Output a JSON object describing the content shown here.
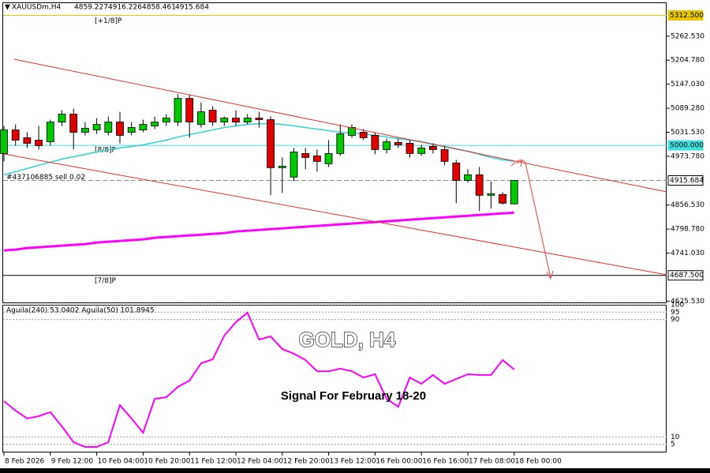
{
  "chart_data": [
    {
      "type": "candlestick",
      "title": "XAUUSDm,H4",
      "categories": [
        "8 Feb 2026",
        null,
        null,
        null,
        "9 Feb 12:00",
        null,
        null,
        null,
        "10 Feb 04:00",
        null,
        null,
        null,
        "10 Feb 20:00",
        null,
        null,
        null,
        "11 Feb 12:00",
        null,
        null,
        null,
        "12 Feb 04:00",
        null,
        null,
        null,
        "12 Feb 20:00",
        null,
        null,
        null,
        "13 Feb 12:00",
        null,
        null,
        null,
        "16 Feb 00:00",
        null,
        null,
        null,
        "16 Feb 16:00",
        null,
        null,
        null,
        "17 Feb 08:00",
        null,
        null,
        null,
        "18 Feb 00:00"
      ],
      "open": [
        4980.4,
        5037.2,
        5018.3,
        5012.6,
        5008.8,
        5056.1,
        5075.1,
        5031.5,
        5037.2,
        5031.5,
        5056.1,
        5031.5,
        5037.2,
        5046.7,
        5056.1,
        5056.1,
        5112.9,
        5050.4,
        5084.5,
        5056.1,
        5065.6,
        5056.1,
        5065.6,
        5061.8,
        4946.4,
        4923.7,
        4980.4,
        4974.7,
        4955.8,
        4980.4,
        5024.0,
        5031.5,
        5024.0,
        4989.9,
        5006.9,
        5005.0,
        4980.4,
        4997.5,
        4989.9,
        4957.7,
        4915.7,
        4929.3,
        4880.0,
        4881.9,
        4859.227
      ],
      "high": [
        5046.7,
        5050.4,
        5031.5,
        5046.7,
        5061.8,
        5084.5,
        5088.3,
        5056.1,
        5065.6,
        5069.4,
        5080.7,
        5056.1,
        5061.8,
        5069.4,
        5075.1,
        5122.4,
        5122.4,
        5103.5,
        5094.0,
        5069.4,
        5084.5,
        5075.1,
        5080.7,
        5069.4,
        4970.9,
        4993.6,
        4993.6,
        4989.9,
        5012.6,
        5050.4,
        5050.4,
        5039.1,
        5031.5,
        5016.4,
        5016.4,
        5012.6,
        5001.3,
        5005.0,
        4999.4,
        4965.2,
        4942.6,
        4948.3,
        4914.1,
        4887.6,
        4916.226
      ],
      "low": [
        4961.5,
        4999.4,
        4993.6,
        4989.9,
        4999.4,
        5046.7,
        4989.9,
        5024.0,
        5027.7,
        5024.0,
        5005.0,
        5024.0,
        5031.5,
        5039.1,
        5046.7,
        5046.7,
        5018.3,
        5042.9,
        5046.7,
        5046.7,
        5046.7,
        5050.4,
        5042.9,
        4880.0,
        4885.7,
        4914.1,
        4942.6,
        4936.9,
        4948.3,
        4974.7,
        5018.3,
        5012.6,
        4978.5,
        4980.4,
        4993.6,
        4970.9,
        4974.7,
        4980.4,
        4952.0,
        4861.1,
        4910.3,
        4842.2,
        4847.9,
        4857.3,
        4858.461
      ],
      "close": [
        5037.2,
        5012.6,
        5005.0,
        4999.4,
        5056.1,
        5075.1,
        5031.5,
        5041.0,
        5050.4,
        5056.1,
        5024.0,
        5042.9,
        5050.4,
        5056.1,
        5065.6,
        5112.9,
        5056.1,
        5080.7,
        5056.1,
        5065.6,
        5056.1,
        5065.6,
        5061.8,
        4946.4,
        4950.1,
        4984.2,
        4970.9,
        4961.5,
        4980.4,
        5027.7,
        5042.9,
        5018.3,
        4989.9,
        5008.8,
        5001.3,
        4980.4,
        4993.6,
        4989.9,
        4961.5,
        4915.7,
        4929.3,
        4880.0,
        4883.8,
        4861.1,
        4915.684
      ],
      "up_color": "#00c800",
      "down_color": "#e00000",
      "overlays": [
        {
          "color": "#40d0d0",
          "values": [
            4929.3,
            4936.9,
            4944.4,
            4952.0,
            4959.6,
            4967.1,
            4972.8,
            4978.5,
            4984.2,
            4989.9,
            4993.6,
            4997.5,
            5001.3,
            5006.9,
            5012.6,
            5020.1,
            5025.8,
            5031.5,
            5037.2,
            5042.9,
            5046.7,
            5050.4,
            5052.3,
            5052.3,
            5050.4,
            5046.7,
            5042.9,
            5039.1,
            5035.3,
            5031.5,
            5029.6,
            5027.7,
            5024.0,
            5020.1,
            5016.4,
            5012.6,
            5008.8,
            5003.1,
            4997.5,
            4991.7,
            4986.2,
            4978.5,
            4970.9,
            4965.2,
            4961.5
          ]
        },
        {
          "color": "#ff00ff",
          "values": [
            4747.5,
            4749.4,
            4753.2,
            4755.1,
            4757.0,
            4758.9,
            4760.8,
            4762.6,
            4766.4,
            4768.3,
            4770.2,
            4772.1,
            4774.0,
            4777.8,
            4779.7,
            4781.6,
            4783.5,
            4785.3,
            4787.2,
            4789.1,
            4792.9,
            4794.8,
            4796.7,
            4798.6,
            4800.5,
            4802.4,
            4804.3,
            4806.2,
            4808.1,
            4810.0,
            4811.9,
            4813.8,
            4815.6,
            4817.5,
            4819.4,
            4821.3,
            4823.2,
            4825.1,
            4827.0,
            4828.9,
            4830.8,
            4832.7,
            4834.6,
            4836.5,
            4838.4
          ]
        }
      ],
      "levels": [
        {
          "value": 5312.5,
          "label": "5312.500",
          "tag": "[+1/8]P",
          "color": "#e6c800"
        },
        {
          "value": 5000,
          "label": "5000.000",
          "tag": "[8/8]P",
          "color": "#40e0e0"
        },
        {
          "value": 4915.684,
          "label": "4915.684",
          "tag": "#437106885 sell 0.02",
          "color": "#7a9a7a"
        },
        {
          "value": 4687.5,
          "label": "4687.500",
          "tag": "[7/8]P",
          "color": "#000000"
        }
      ],
      "ylim": [
        4622.4,
        5340.0
      ],
      "yticks": [
        {
          "value": 5262.53,
          "label": "5262.530"
        },
        {
          "value": 5204.78,
          "label": "5204.780"
        },
        {
          "value": 5147.03,
          "label": "5147.030"
        },
        {
          "value": 5089.28,
          "label": "5089.280"
        },
        {
          "value": 5031.53,
          "label": "5031.530"
        },
        {
          "value": 4973.78,
          "label": "4973.780"
        },
        {
          "value": 4856.53,
          "label": "4856.530"
        },
        {
          "value": 4798.78,
          "label": "4798.780"
        },
        {
          "value": 4741.03,
          "label": "4741.030"
        },
        {
          "value": 4625.53,
          "label": "4625.530"
        }
      ],
      "annotations": [
        "GOLD, H4",
        "Signal For February 18-20"
      ]
    },
    {
      "type": "line",
      "title": "Aguila(240) 53.0402  Aguila(50) 101.8945",
      "series": [
        {
          "color": "#ff00ff",
          "values": [
            34.4,
            28.0,
            22.6,
            24.2,
            26.9,
            17.2,
            6.5,
            3.2,
            3.2,
            6.5,
            31.7,
            22.6,
            12.9,
            36.0,
            37.1,
            44.1,
            48.4,
            60.2,
            62.9,
            79.0,
            88.2,
            94.6,
            76.3,
            78.5,
            69.9,
            66.7,
            62.4,
            54.8,
            54.8,
            56.5,
            54.8,
            50.5,
            52.7,
            36.0,
            30.6,
            50.5,
            46.2,
            52.2,
            46.2,
            49.5,
            52.7,
            52.2,
            52.2,
            62.4,
            55.9
          ]
        }
      ],
      "ylim": [
        0,
        100
      ],
      "yticks": [
        100,
        95,
        90,
        10,
        5
      ]
    }
  ]
}
